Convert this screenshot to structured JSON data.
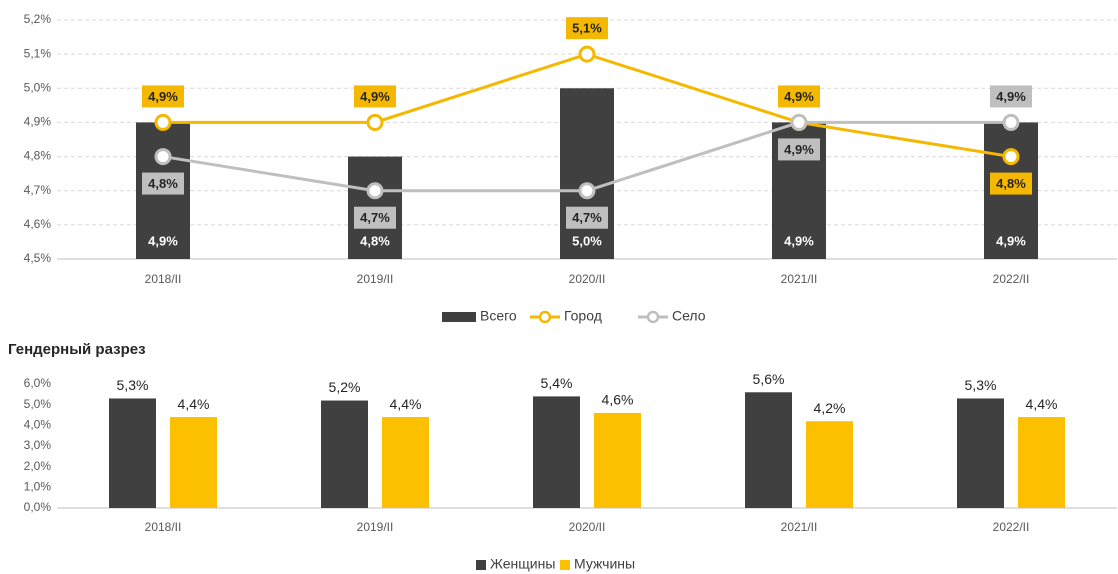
{
  "chart_data": [
    {
      "type": "combo",
      "categories": [
        "2018/II",
        "2019/II",
        "2020/II",
        "2021/II",
        "2022/II"
      ],
      "ylim": [
        4.5,
        5.2
      ],
      "yticks": [
        {
          "value": 4.5,
          "label": "4,5%"
        },
        {
          "value": 4.6,
          "label": "4,6%"
        },
        {
          "value": 4.7,
          "label": "4,7%"
        },
        {
          "value": 4.8,
          "label": "4,8%"
        },
        {
          "value": 4.9,
          "label": "4,9%"
        },
        {
          "value": 5.0,
          "label": "5,0%"
        },
        {
          "value": 5.1,
          "label": "5,1%"
        },
        {
          "value": 5.2,
          "label": "5,2%"
        }
      ],
      "grid": true,
      "series": [
        {
          "name": "Всего",
          "type": "bar",
          "color": "#404040",
          "values": [
            4.9,
            4.8,
            5.0,
            4.9,
            4.9
          ],
          "value_labels": [
            "4,9%",
            "4,8%",
            "5,0%",
            "4,9%",
            "4,9%"
          ]
        },
        {
          "name": "Город",
          "type": "line",
          "color": "#f5b800",
          "values": [
            4.9,
            4.9,
            5.1,
            4.9,
            4.8
          ],
          "value_labels": [
            "4,9%",
            "4,9%",
            "5,1%",
            "4,9%",
            "4,8%"
          ]
        },
        {
          "name": "Село",
          "type": "line",
          "color": "#bfbfbf",
          "values": [
            4.8,
            4.7,
            4.7,
            4.9,
            4.9
          ],
          "value_labels": [
            "4,8%",
            "4,7%",
            "4,7%",
            "4,9%",
            "4,9%"
          ]
        }
      ]
    },
    {
      "type": "bar",
      "title": "Гендерный разрез",
      "categories": [
        "2018/II",
        "2019/II",
        "2020/II",
        "2021/II",
        "2022/II"
      ],
      "ylim": [
        0,
        6
      ],
      "yticks": [
        {
          "value": 0,
          "label": "0,0%"
        },
        {
          "value": 1,
          "label": "1,0%"
        },
        {
          "value": 2,
          "label": "2,0%"
        },
        {
          "value": 3,
          "label": "3,0%"
        },
        {
          "value": 4,
          "label": "4,0%"
        },
        {
          "value": 5,
          "label": "5,0%"
        },
        {
          "value": 6,
          "label": "6,0%"
        }
      ],
      "grid": false,
      "series": [
        {
          "name": "Женщины",
          "color": "#404040",
          "values": [
            5.3,
            5.2,
            5.4,
            5.6,
            5.3
          ],
          "value_labels": [
            "5,3%",
            "5,2%",
            "5,4%",
            "5,6%",
            "5,3%"
          ]
        },
        {
          "name": "Мужчины",
          "color": "#fcc000",
          "values": [
            4.4,
            4.4,
            4.6,
            4.2,
            4.4
          ],
          "value_labels": [
            "4,4%",
            "4,4%",
            "4,6%",
            "4,2%",
            "4,4%"
          ]
        }
      ]
    }
  ]
}
